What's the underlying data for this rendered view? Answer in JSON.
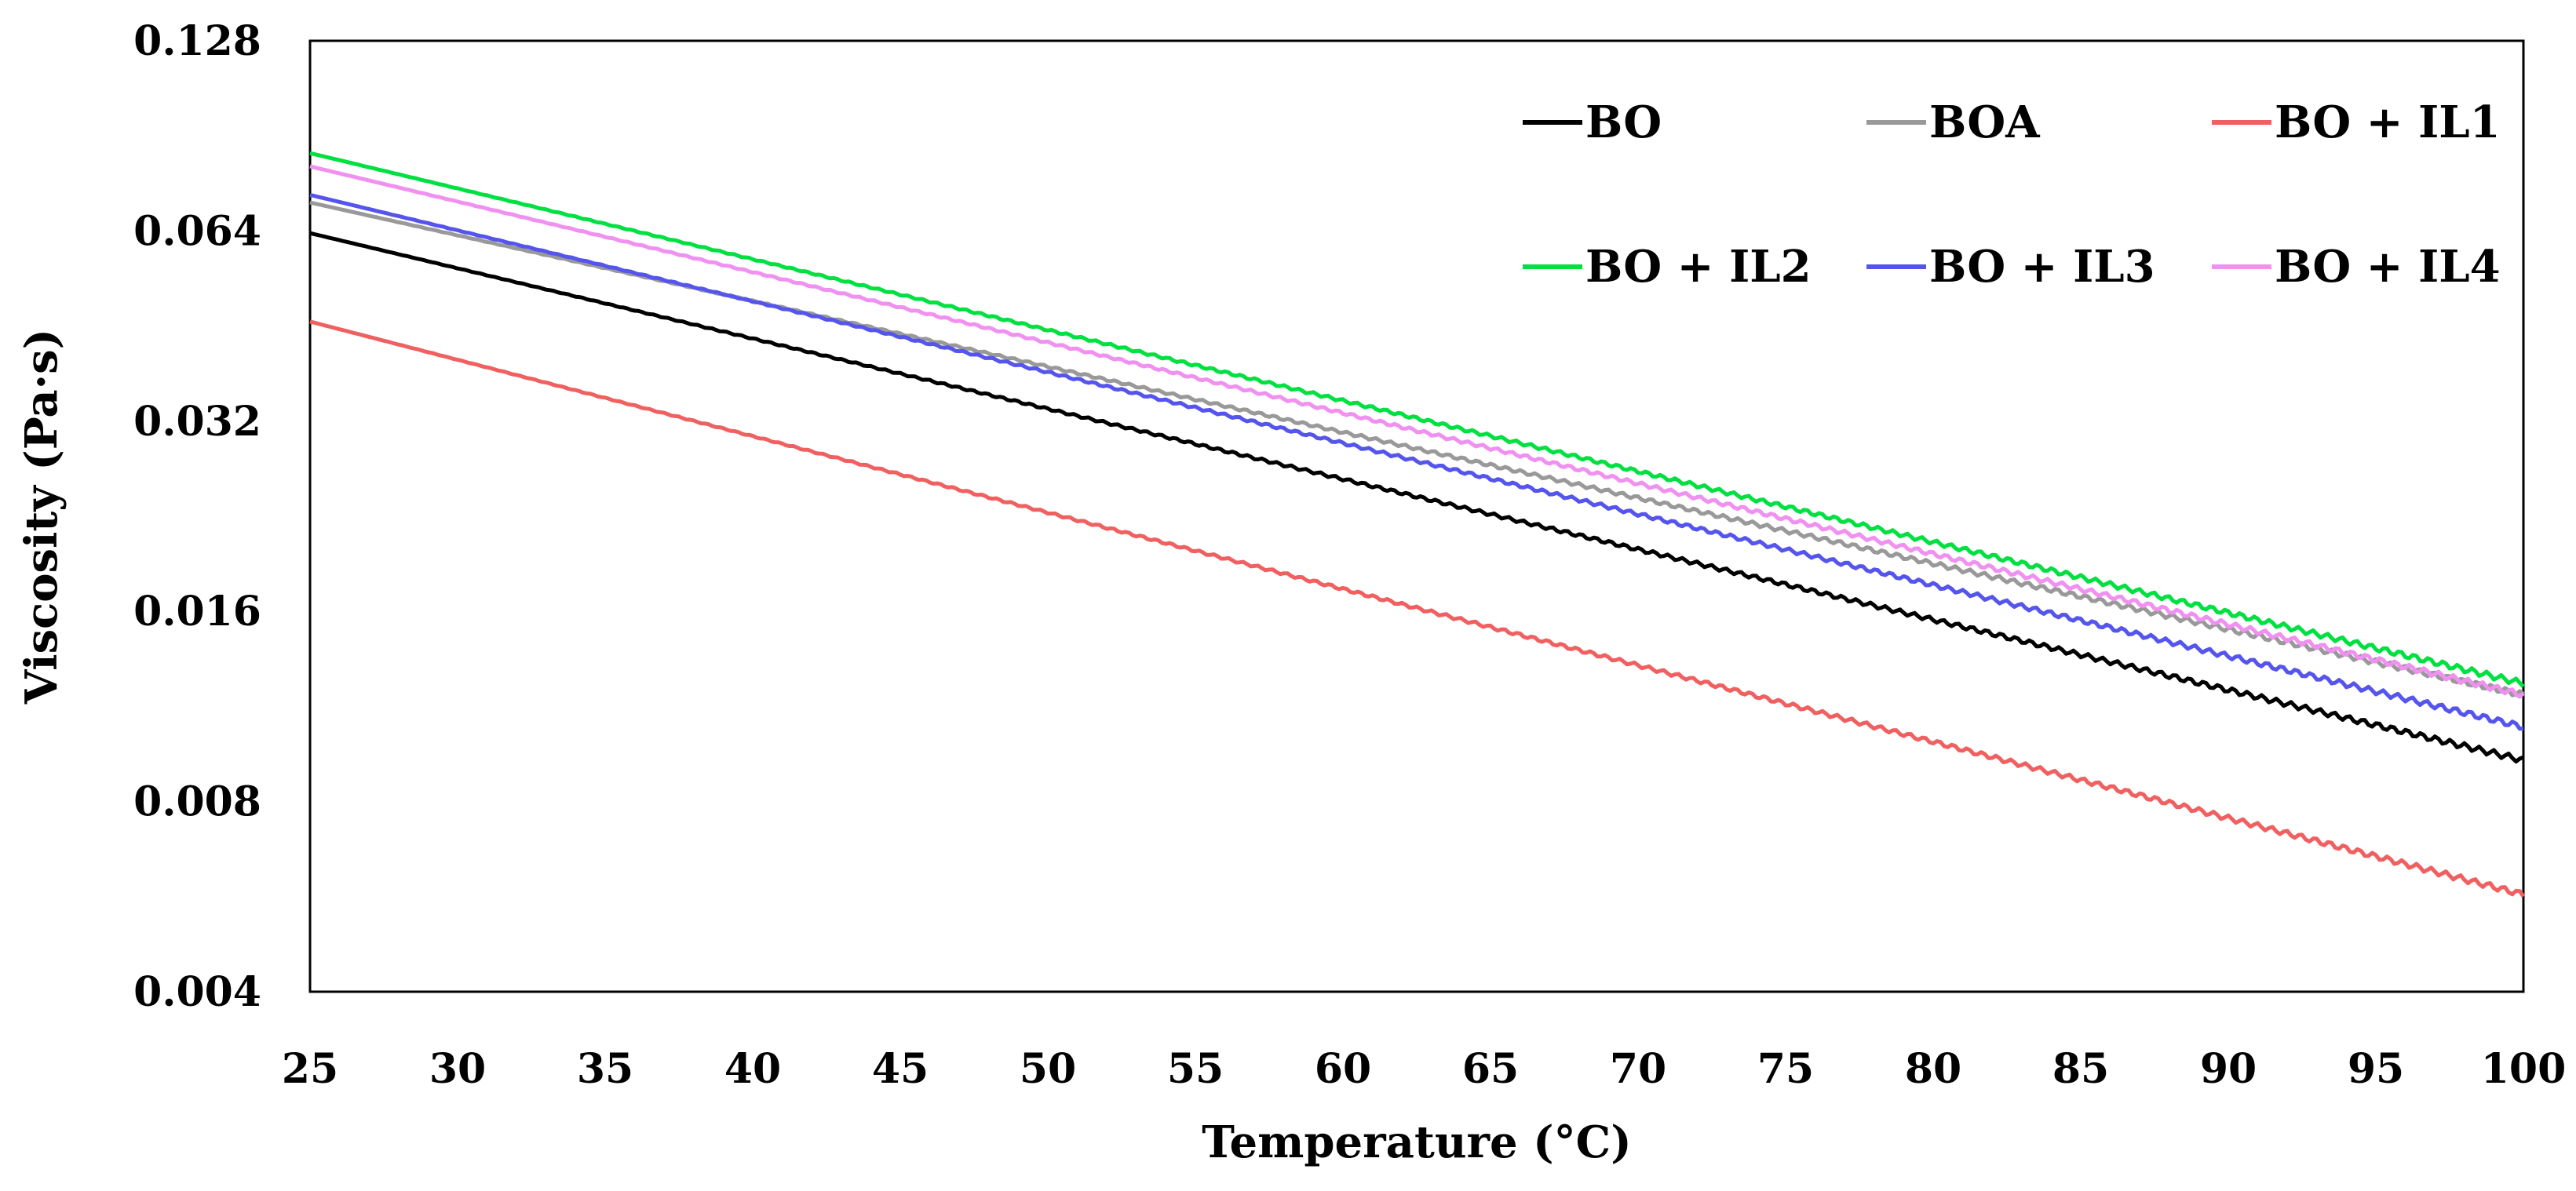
{
  "chart_data": {
    "type": "line",
    "title": "",
    "xlabel": "Temperature (°C)",
    "ylabel": "Viscosity (Pa·s)",
    "xlim": [
      25,
      100
    ],
    "ylim": [
      0.004,
      0.128
    ],
    "yscale": "log2",
    "grid": false,
    "legend_position": "top-right",
    "x_ticks": [
      25,
      30,
      35,
      40,
      45,
      50,
      55,
      60,
      65,
      70,
      75,
      80,
      85,
      90,
      95,
      100
    ],
    "x_tick_labels": [
      "25",
      "30",
      "35",
      "40",
      "45",
      "50",
      "55",
      "60",
      "65",
      "70",
      "75",
      "80",
      "85",
      "90",
      "95",
      "100"
    ],
    "y_ticks": [
      0.004,
      0.008,
      0.016,
      0.032,
      0.064,
      0.128
    ],
    "y_tick_labels": [
      "0.004",
      "0.008",
      "0.016",
      "0.032",
      "0.064",
      "0.128"
    ],
    "series": [
      {
        "name": "BO",
        "color": "#000000",
        "x": [
          25,
          100
        ],
        "values": [
          0.0635,
          0.0093
        ]
      },
      {
        "name": "BOA",
        "color": "#999999",
        "x": [
          25,
          100
        ],
        "values": [
          0.071,
          0.0118
        ]
      },
      {
        "name": "BO + IL1",
        "color": "#f06060",
        "x": [
          25,
          100
        ],
        "values": [
          0.046,
          0.0057
        ]
      },
      {
        "name": "BO + IL2",
        "color": "#00e040",
        "x": [
          25,
          100
        ],
        "values": [
          0.085,
          0.0123
        ]
      },
      {
        "name": "BO + IL3",
        "color": "#5555ee",
        "x": [
          25,
          100
        ],
        "values": [
          0.073,
          0.0105
        ]
      },
      {
        "name": "BO + IL4",
        "color": "#f090f0",
        "x": [
          25,
          100
        ],
        "values": [
          0.081,
          0.0118
        ]
      }
    ]
  }
}
